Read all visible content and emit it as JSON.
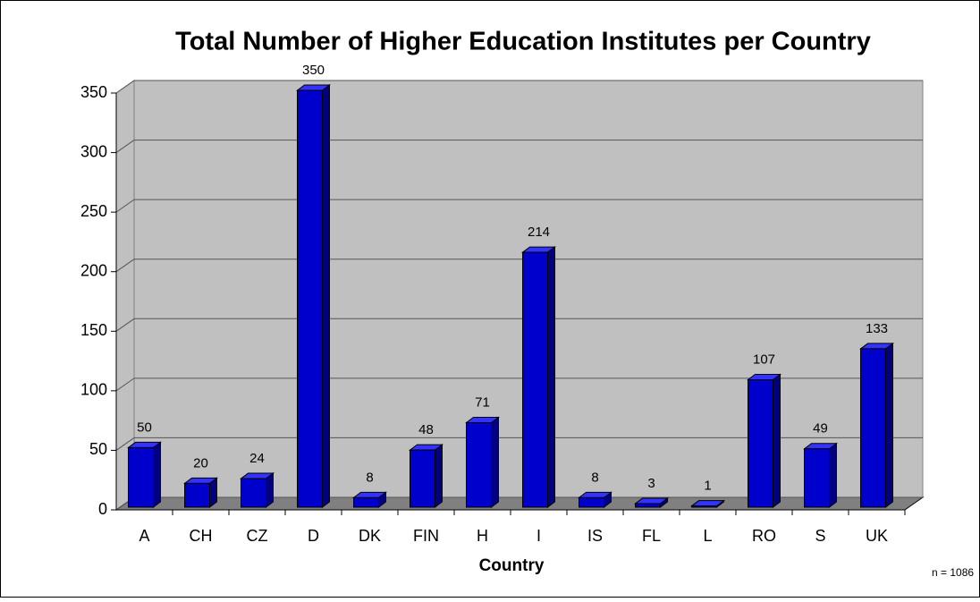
{
  "chart_data": {
    "type": "bar",
    "title": "Total Number of Higher Education Institutes per Country",
    "x_label": "Country",
    "annotation": "n = 1086",
    "categories": [
      "A",
      "CH",
      "CZ",
      "D",
      "DK",
      "FIN",
      "H",
      "I",
      "IS",
      "FL",
      "L",
      "RO",
      "S",
      "UK"
    ],
    "values": [
      50,
      20,
      24,
      350,
      8,
      48,
      71,
      214,
      8,
      3,
      1,
      107,
      49,
      133
    ],
    "color": "#0000cc",
    "ylim": [
      0,
      350
    ],
    "yticks": [
      0,
      50,
      100,
      150,
      200,
      250,
      300,
      350
    ],
    "grid": true
  }
}
